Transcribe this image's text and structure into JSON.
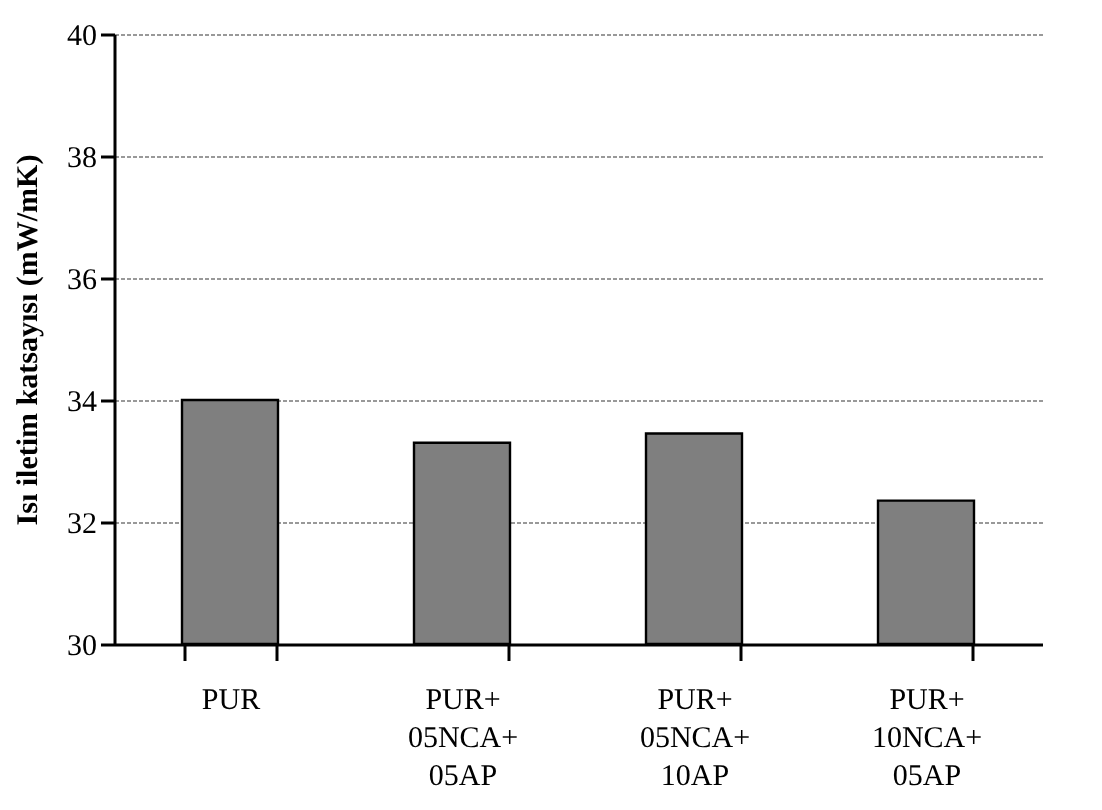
{
  "chart_data": {
    "type": "bar",
    "ylabel": "Isı iletim katsayısı (mW/mK)",
    "categories": [
      "PUR",
      "PUR+\n05NCA+\n05AP",
      "PUR+\n05NCA+\n10AP",
      "PUR+\n10NCA+\n05AP"
    ],
    "values": [
      34.0,
      33.3,
      33.45,
      32.35
    ],
    "color": "#7f7f7f",
    "ylim": [
      30,
      40
    ],
    "yticks": [
      30,
      32,
      34,
      36,
      38,
      40
    ],
    "grid": "y"
  }
}
